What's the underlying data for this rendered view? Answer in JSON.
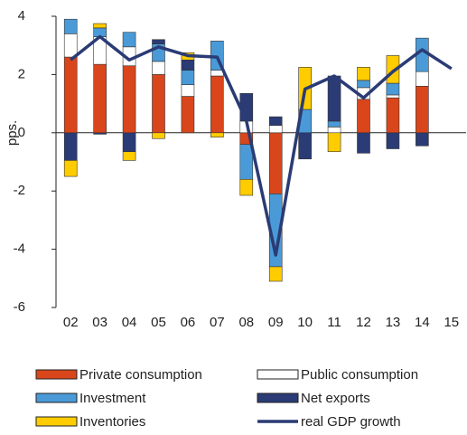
{
  "chart_data": {
    "type": "bar",
    "stacked": true,
    "y_label": "pps.",
    "categories": [
      "02",
      "03",
      "04",
      "05",
      "06",
      "07",
      "08",
      "09",
      "10",
      "11",
      "12",
      "13",
      "14",
      "15"
    ],
    "series": [
      {
        "name": "Private consumption",
        "color": "#d9461b",
        "values": [
          2.6,
          2.35,
          2.3,
          2.0,
          1.25,
          1.95,
          -0.4,
          -2.1,
          0,
          0,
          1.15,
          1.2,
          1.6,
          null
        ]
      },
      {
        "name": "Public consumption",
        "color": "#ffffff",
        "values": [
          0.8,
          0.95,
          0.65,
          0.45,
          0.4,
          0.2,
          0.4,
          0.25,
          0,
          0.2,
          0.4,
          0.1,
          0.5,
          null
        ]
      },
      {
        "name": "Investment",
        "color": "#4a9ad7",
        "values": [
          0.5,
          0.3,
          0.5,
          0.6,
          0.5,
          1.0,
          -1.2,
          -2.5,
          0.8,
          0.2,
          0.25,
          0.4,
          1.15,
          null
        ]
      },
      {
        "name": "Net exports",
        "color": "#2a3b75",
        "values": [
          -0.95,
          -0.05,
          -0.65,
          0.15,
          0.35,
          0,
          0.95,
          0.3,
          -0.9,
          1.55,
          -0.7,
          -0.55,
          -0.45,
          null
        ]
      },
      {
        "name": "Inventories",
        "color": "#ffcc00",
        "values": [
          -0.55,
          0.15,
          -0.3,
          -0.2,
          0.25,
          -0.15,
          -0.55,
          -0.5,
          1.45,
          -0.65,
          0.45,
          0.95,
          0,
          null
        ]
      },
      {
        "name": "real GDP growth",
        "type": "line",
        "color": "#2a3b75",
        "values": [
          2.5,
          3.3,
          2.5,
          2.95,
          2.65,
          2.6,
          0.4,
          -4.2,
          1.5,
          1.95,
          1.2,
          2.1,
          2.85,
          2.2
        ]
      }
    ],
    "ylim": [
      -6,
      4
    ],
    "yticks": [
      4,
      2,
      0,
      -2,
      -4,
      -6
    ]
  }
}
